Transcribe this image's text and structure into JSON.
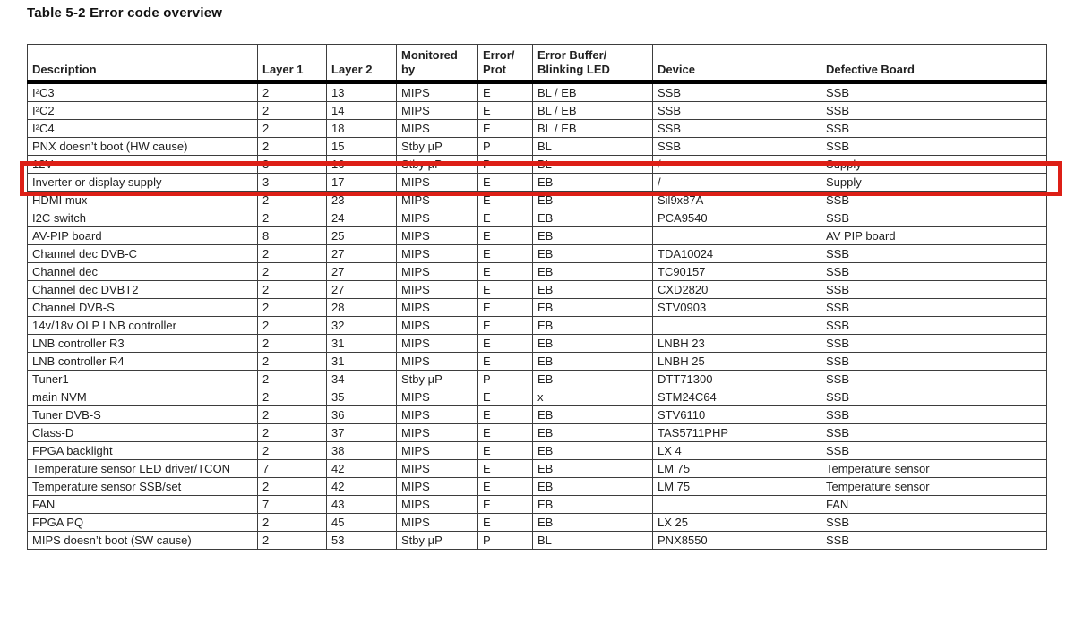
{
  "page": {
    "title": "Table 5-2 Error code overview"
  },
  "table": {
    "columns": [
      "Description",
      "Layer 1",
      "Layer 2",
      "Monitored\nby",
      "Error/\nProt",
      "Error Buffer/\nBlinking LED",
      "Device",
      "Defective Board"
    ],
    "rows": [
      [
        "I²C3",
        "2",
        "13",
        "MIPS",
        "E",
        "BL / EB",
        "SSB",
        "SSB"
      ],
      [
        "I²C2",
        "2",
        "14",
        "MIPS",
        "E",
        "BL / EB",
        "SSB",
        "SSB"
      ],
      [
        "I²C4",
        "2",
        "18",
        "MIPS",
        "E",
        "BL / EB",
        "SSB",
        "SSB"
      ],
      [
        "PNX doesn’t boot (HW cause)",
        "2",
        "15",
        "Stby µP",
        "P",
        "BL",
        "SSB",
        "SSB"
      ],
      [
        "12V",
        "3",
        "16",
        "Stby µP",
        "P",
        "BL",
        "/",
        "Supply"
      ],
      [
        "Inverter or display supply",
        "3",
        "17",
        "MIPS",
        "E",
        "EB",
        "/",
        "Supply"
      ],
      [
        "HDMI mux",
        "2",
        "23",
        "MIPS",
        "E",
        "EB",
        "Sil9x87A",
        "SSB"
      ],
      [
        "I2C switch",
        "2",
        "24",
        "MIPS",
        "E",
        "EB",
        "PCA9540",
        "SSB"
      ],
      [
        "AV-PIP board",
        "8",
        "25",
        "MIPS",
        "E",
        "EB",
        "",
        "AV PIP board"
      ],
      [
        "Channel dec DVB-C",
        "2",
        "27",
        "MIPS",
        "E",
        "EB",
        "TDA10024",
        "SSB"
      ],
      [
        "Channel dec",
        "2",
        "27",
        "MIPS",
        "E",
        "EB",
        "TC90157",
        "SSB"
      ],
      [
        "Channel dec DVBT2",
        "2",
        "27",
        "MIPS",
        "E",
        "EB",
        "CXD2820",
        "SSB"
      ],
      [
        "Channel DVB-S",
        "2",
        "28",
        "MIPS",
        "E",
        "EB",
        "STV0903",
        "SSB"
      ],
      [
        "14v/18v OLP LNB controller",
        "2",
        "32",
        "MIPS",
        "E",
        "EB",
        "",
        "SSB"
      ],
      [
        "LNB controller R3",
        "2",
        "31",
        "MIPS",
        "E",
        "EB",
        "LNBH 23",
        "SSB"
      ],
      [
        "LNB controller R4",
        "2",
        "31",
        "MIPS",
        "E",
        "EB",
        "LNBH 25",
        "SSB"
      ],
      [
        "Tuner1",
        "2",
        "34",
        "Stby µP",
        "P",
        "EB",
        "DTT71300",
        "SSB"
      ],
      [
        "main NVM",
        "2",
        "35",
        "MIPS",
        "E",
        "x",
        "STM24C64",
        "SSB"
      ],
      [
        "Tuner DVB-S",
        "2",
        "36",
        "MIPS",
        "E",
        "EB",
        "STV6110",
        "SSB"
      ],
      [
        "Class-D",
        "2",
        "37",
        "MIPS",
        "E",
        "EB",
        "TAS5711PHP",
        "SSB"
      ],
      [
        "FPGA backlight",
        "2",
        "38",
        "MIPS",
        "E",
        "EB",
        "LX 4",
        "SSB"
      ],
      [
        "Temperature sensor LED driver/TCON",
        "7",
        "42",
        "MIPS",
        "E",
        "EB",
        "LM 75",
        "Temperature sensor"
      ],
      [
        "Temperature sensor SSB/set",
        "2",
        "42",
        "MIPS",
        "E",
        "EB",
        "LM 75",
        "Temperature sensor"
      ],
      [
        "FAN",
        "7",
        "43",
        "MIPS",
        "E",
        "EB",
        "",
        "FAN"
      ],
      [
        "FPGA PQ",
        "2",
        "45",
        "MIPS",
        "E",
        "EB",
        "LX 25",
        "SSB"
      ],
      [
        "MIPS doesn’t boot (SW cause)",
        "2",
        "53",
        "Stby µP",
        "P",
        "BL",
        "PNX8550",
        "SSB"
      ]
    ]
  },
  "annotation": {
    "type": "highlight-box",
    "highlighted_row": "12V",
    "color": "#dd1f16"
  },
  "colors": {
    "grid_line": "#3d3d3d",
    "header_rule": "#000000",
    "text": "#212121",
    "background": "#ffffff"
  }
}
